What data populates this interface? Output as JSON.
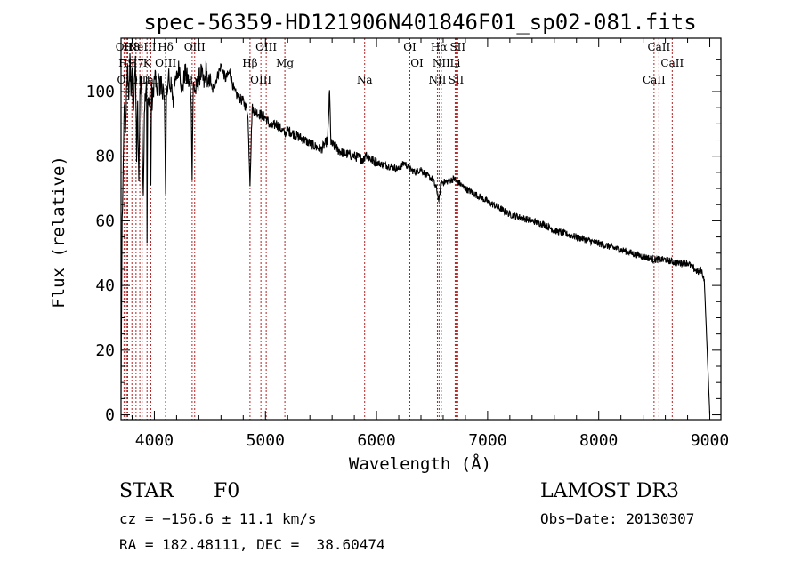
{
  "chart_data": {
    "type": "line",
    "title": "spec-56359-HD121906N401846F01_sp02-081.fits",
    "xlabel": "Wavelength (Å)",
    "ylabel": "Flux (relative)",
    "xlim": [
      3700,
      9100
    ],
    "ylim": [
      -1.5,
      116.5
    ],
    "xticks": [
      4000,
      5000,
      6000,
      7000,
      8000,
      9000
    ],
    "yticks": [
      0,
      20,
      40,
      60,
      80,
      100
    ],
    "grid": false,
    "series": [
      {
        "name": "spectrum",
        "x": [
          3700,
          3710,
          3720,
          3730,
          3740,
          3750,
          3760,
          3770,
          3780,
          3790,
          3800,
          3810,
          3820,
          3830,
          3840,
          3850,
          3860,
          3870,
          3880,
          3890,
          3900,
          3910,
          3920,
          3930,
          3934,
          3940,
          3950,
          3960,
          3968,
          3975,
          3980,
          3990,
          4000,
          4010,
          4020,
          4030,
          4040,
          4050,
          4060,
          4070,
          4080,
          4090,
          4101,
          4110,
          4120,
          4130,
          4140,
          4150,
          4160,
          4170,
          4180,
          4190,
          4200,
          4225,
          4250,
          4275,
          4300,
          4330,
          4340,
          4350,
          4370,
          4400,
          4420,
          4450,
          4470,
          4480,
          4500,
          4520,
          4560,
          4600,
          4640,
          4680,
          4720,
          4760,
          4800,
          4840,
          4861,
          4880,
          4900,
          4950,
          5000,
          5050,
          5100,
          5150,
          5175,
          5200,
          5300,
          5400,
          5500,
          5560,
          5577,
          5590,
          5650,
          5700,
          5800,
          5890,
          5900,
          5950,
          6000,
          6100,
          6200,
          6250,
          6300,
          6350,
          6400,
          6450,
          6500,
          6540,
          6563,
          6580,
          6620,
          6700,
          6800,
          6900,
          7000,
          7100,
          7200,
          7300,
          7400,
          7500,
          7600,
          7700,
          7800,
          7900,
          8000,
          8100,
          8200,
          8300,
          8400,
          8500,
          8600,
          8700,
          8800,
          8860,
          8900,
          8920,
          8950,
          9000
        ],
        "y": [
          5,
          60,
          75,
          98,
          85,
          100,
          110,
          95,
          112,
          100,
          105,
          92,
          105,
          108,
          80,
          95,
          70,
          100,
          105,
          90,
          65,
          95,
          100,
          105,
          55,
          98,
          95,
          100,
          70,
          103,
          96,
          100,
          104,
          105,
          98,
          102,
          104,
          100,
          105,
          98,
          102,
          100,
          65,
          103,
          100,
          106,
          98,
          104,
          100,
          96,
          105,
          102,
          104,
          108,
          100,
          106,
          104,
          100,
          75,
          102,
          100,
          104,
          106,
          102,
          108,
          100,
          105,
          100,
          104,
          108,
          104,
          106,
          100,
          98,
          97,
          94,
          72,
          95,
          94,
          93,
          92,
          89,
          90,
          88,
          87,
          88,
          86,
          84,
          82,
          85,
          100,
          84,
          82,
          81,
          80,
          79,
          81,
          79,
          78,
          77,
          76,
          78,
          76,
          75,
          76,
          74,
          73,
          70,
          66,
          72,
          72,
          73,
          70,
          68,
          66,
          64,
          62,
          61,
          60,
          59,
          57,
          56,
          55,
          54,
          53,
          52,
          51,
          50,
          49,
          48,
          48,
          47,
          47,
          45,
          44,
          45,
          42,
          0
        ]
      }
    ],
    "spectral_lines": [
      {
        "label": "OII",
        "wavelength": 3727
      },
      {
        "label": "H9",
        "wavelength": 3750
      },
      {
        "label": "OIII",
        "wavelength": 3760
      },
      {
        "label": "H8",
        "wavelength": 3798
      },
      {
        "label": "H7",
        "wavelength": 3835
      },
      {
        "label": "OIII",
        "wavelength": 3869
      },
      {
        "label": "NeIII",
        "wavelength": 3890
      },
      {
        "label": "K",
        "wavelength": 3934
      },
      {
        "label": "CaII",
        "wavelength": 3968
      },
      {
        "label": "Hδ",
        "wavelength": 4101
      },
      {
        "label": "OIII",
        "wavelength": 4102
      },
      {
        "label": "Hγ",
        "wavelength": 4340
      },
      {
        "label": "OIII",
        "wavelength": 4363
      },
      {
        "label": "Hβ",
        "wavelength": 4861
      },
      {
        "label": "OIII",
        "wavelength": 4959
      },
      {
        "label": "OIII",
        "wavelength": 5007
      },
      {
        "label": "Mg",
        "wavelength": 5175
      },
      {
        "label": "Na",
        "wavelength": 5893
      },
      {
        "label": "OI",
        "wavelength": 6300
      },
      {
        "label": "OI",
        "wavelength": 6364
      },
      {
        "label": "NII",
        "wavelength": 6548
      },
      {
        "label": "Hα",
        "wavelength": 6563
      },
      {
        "label": "NII",
        "wavelength": 6583
      },
      {
        "label": "SII",
        "wavelength": 6716
      },
      {
        "label": "SII",
        "wavelength": 6731
      },
      {
        "label": "Li",
        "wavelength": 6708
      },
      {
        "label": "CaII",
        "wavelength": 8498
      },
      {
        "label": "CaII",
        "wavelength": 8542
      },
      {
        "label": "CaII",
        "wavelength": 8662
      }
    ],
    "colors": {
      "spectrum": "#000000",
      "lines": "#b22222",
      "axes": "#000000"
    }
  },
  "info": {
    "object_class": "STAR",
    "subclass": "F0",
    "survey": "LAMOST DR3",
    "cz_text": "cz = −156.6 ± 11.1 km/s",
    "obs_date": "Obs−Date: 20130307",
    "radec_text": "RA = 182.48111, DEC =  38.60474"
  }
}
